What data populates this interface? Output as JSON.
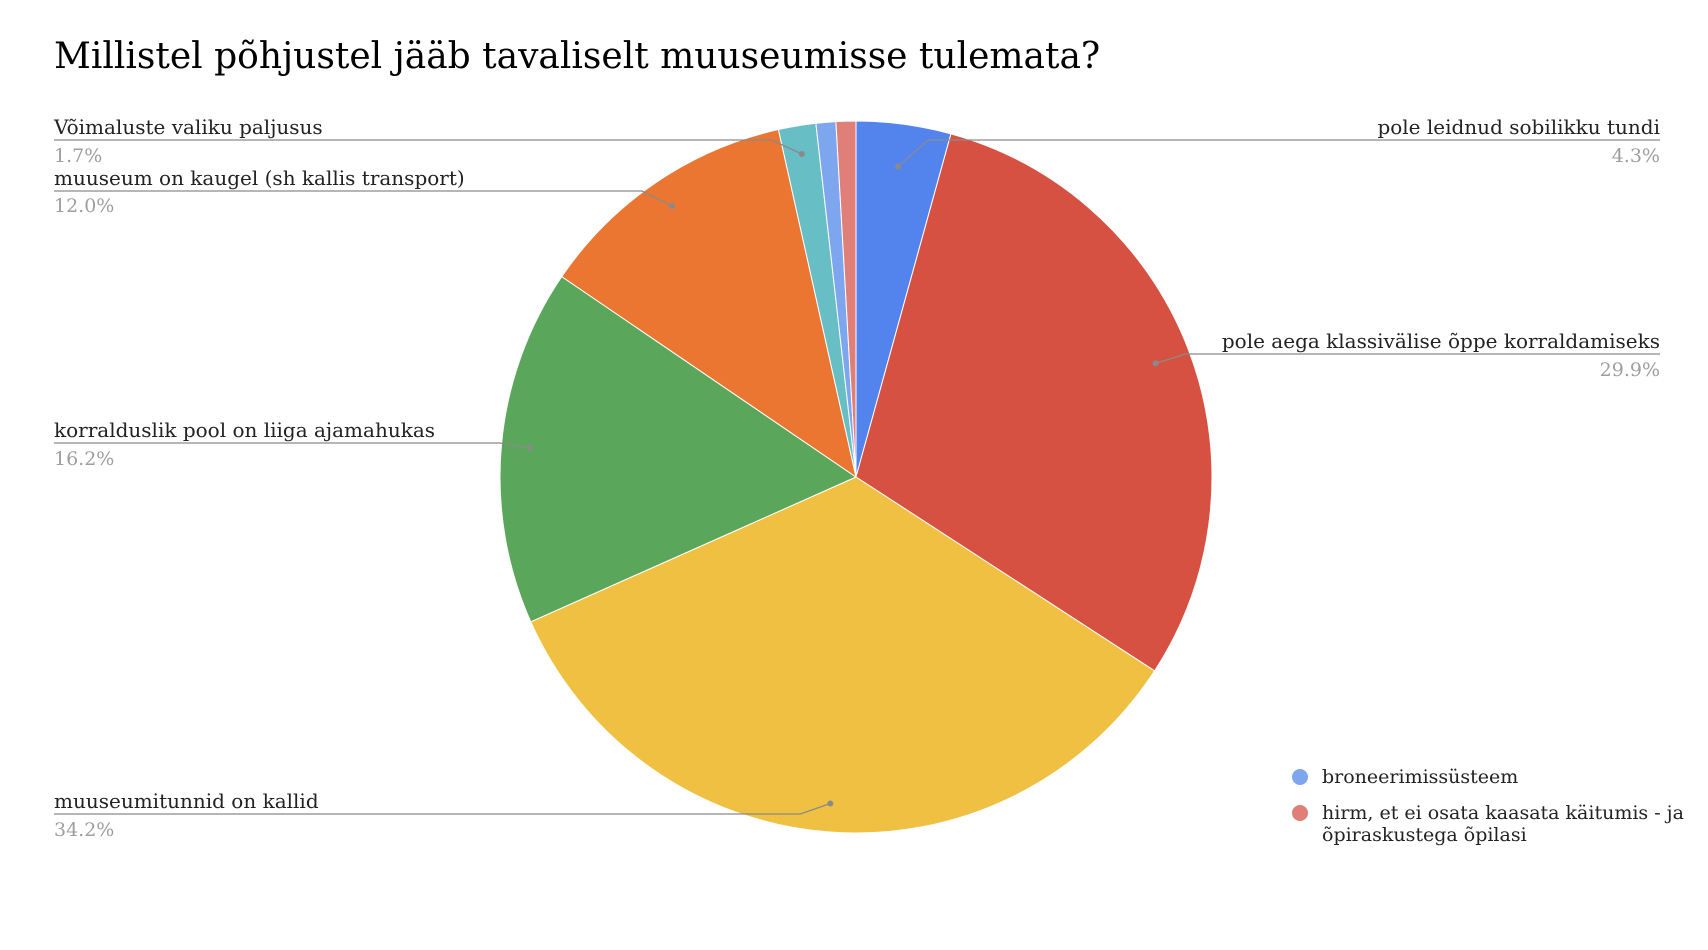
{
  "chart_data": {
    "type": "pie",
    "title": "Millistel põhjustel jääb tavaliselt muuseumisse tulemata?",
    "slices": [
      {
        "label": "pole leidnud sobilikku tundi",
        "value": 4.3,
        "value_label": "4.3%",
        "color": "#5384ED",
        "callout": true
      },
      {
        "label": "pole aega klassivälise õppe korraldamiseks",
        "value": 29.9,
        "value_label": "29.9%",
        "color": "#D75142",
        "callout": true
      },
      {
        "label": "muuseumitunnid on kallid",
        "value": 34.2,
        "value_label": "34.2%",
        "color": "#F0C043",
        "callout": true
      },
      {
        "label": "korralduslik pool on liiga ajamahukas",
        "value": 16.2,
        "value_label": "16.2%",
        "color": "#5AA75C",
        "callout": true
      },
      {
        "label": "muuseum on kaugel (sh kallis transport)",
        "value": 12.0,
        "value_label": "12.0%",
        "color": "#EA7631",
        "callout": true
      },
      {
        "label": "Võimaluste valiku paljusus",
        "value": 1.7,
        "value_label": "1.7%",
        "color": "#68BEC5",
        "callout": true
      },
      {
        "label": "broneerimissüsteem",
        "value": 0.9,
        "value_label": "",
        "color": "#7EA6EE",
        "callout": false
      },
      {
        "label": "hirm, et ei osata kaasata käitumis - ja õpiraskustega õpilasi",
        "value": 0.9,
        "value_label": "",
        "color": "#E07F77",
        "callout": false
      }
    ],
    "legend": {
      "placement": "bottom-right",
      "items": [
        {
          "label": "broneerimissüsteem",
          "color": "#7EA6EE"
        },
        {
          "label": "hirm, et ei osata kaasata käitumis - ja õpiraskustega õpilasi",
          "color": "#E07F77"
        }
      ]
    }
  }
}
